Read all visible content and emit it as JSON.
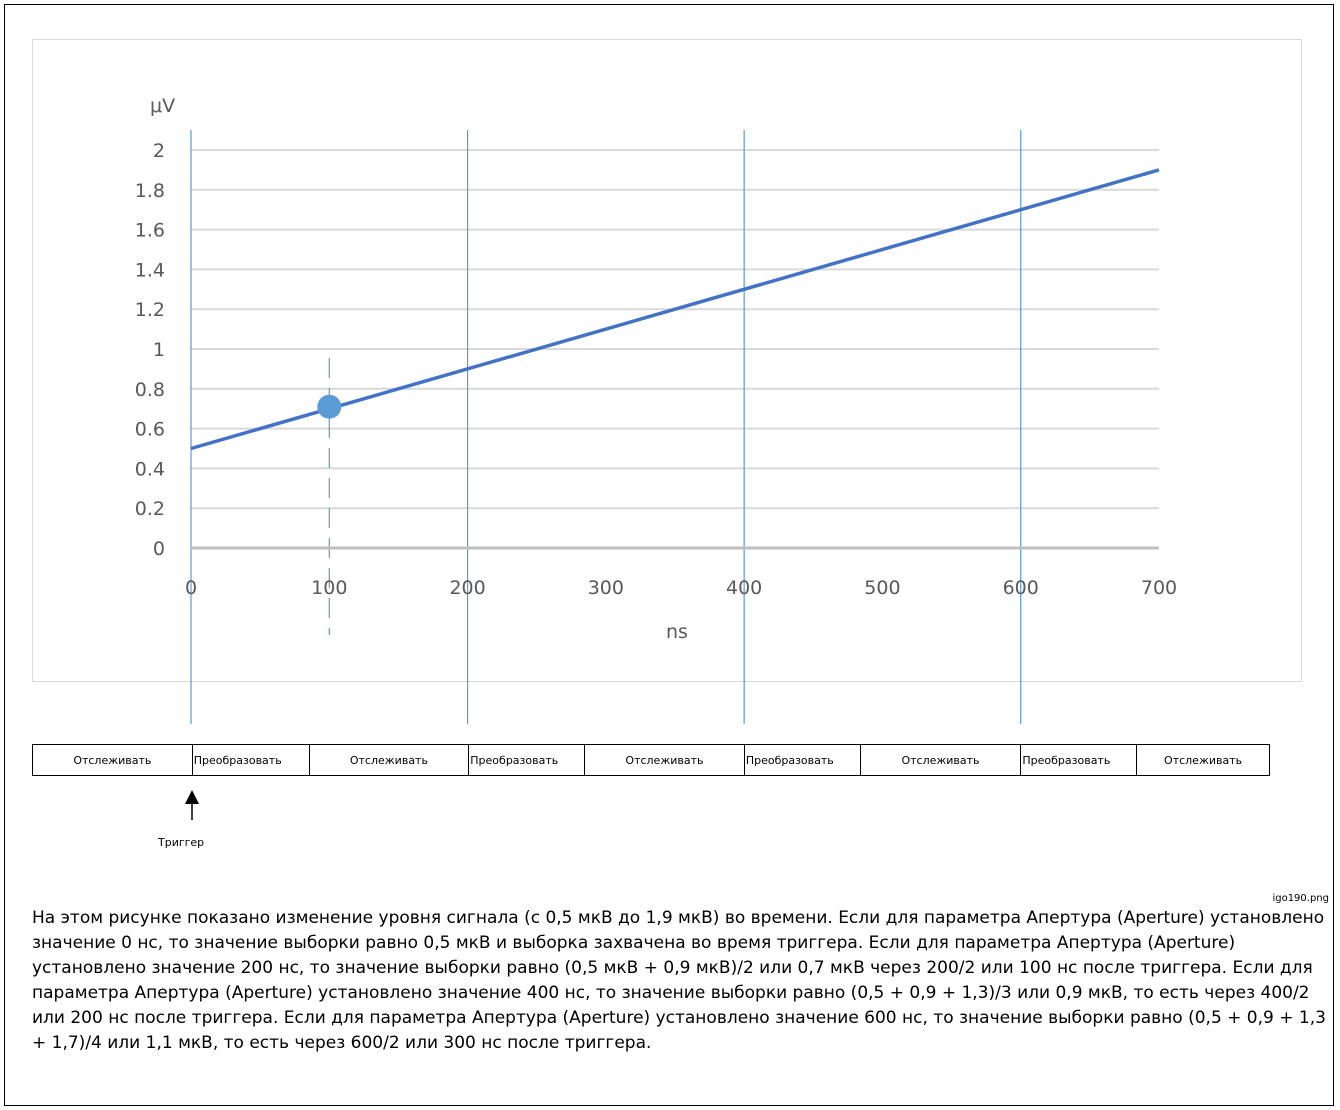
{
  "chart_data": {
    "type": "line",
    "xlabel": "ns",
    "ylabel": "μV",
    "xlim": [
      0,
      700
    ],
    "ylim": [
      0,
      2
    ],
    "x_ticks": [
      "0",
      "100",
      "200",
      "300",
      "400",
      "500",
      "600",
      "700"
    ],
    "y_ticks": [
      "0",
      "0.2",
      "0.4",
      "0.6",
      "0.8",
      "1",
      "1.2",
      "1.4",
      "1.6",
      "1.8",
      "2"
    ],
    "grid": true,
    "series": [
      {
        "x": [
          0,
          700
        ],
        "y": [
          0.5,
          1.9
        ]
      }
    ],
    "marker": {
      "x": 100,
      "y": 0.71
    },
    "dashed_line_x": 100,
    "vertical_lines_x": [
      0,
      200,
      400,
      600
    ],
    "colors": {
      "line": "#4472c4",
      "marker": "#5b9bd5",
      "vlines": "#5b9bd5",
      "grid": "#d9d9d9",
      "axis": "#bfbfbf"
    }
  },
  "phases": [
    {
      "label": "Отслеживать",
      "kind": "track"
    },
    {
      "label": "Преобразовать",
      "kind": "conv"
    },
    {
      "label": "Отслеживать",
      "kind": "track"
    },
    {
      "label": "Преобразовать",
      "kind": "conv"
    },
    {
      "label": "Отслеживать",
      "kind": "track"
    },
    {
      "label": "Преобразовать",
      "kind": "conv"
    },
    {
      "label": "Отслеживать",
      "kind": "track"
    },
    {
      "label": "Преобразовать",
      "kind": "conv"
    },
    {
      "label": "Отслеживать",
      "kind": "track"
    }
  ],
  "trigger_label": "Триггер",
  "filename": "igo190.png",
  "caption": "На этом рисунке показано изменение уровня сигнала (с 0,5 мкВ до 1,9 мкВ) во времени. Если для параметра Апертура (Aperture) установлено значение 0 нс, то значение выборки равно 0,5 мкВ и выборка захвачена во время триггера. Если для параметра Апертура (Aperture) установлено значение 200 нс, то значение выборки равно (0,5 мкВ + 0,9 мкВ)/2 или 0,7 мкВ через 200/2 или 100 нс после триггера. Если для параметра Апертура (Aperture) установлено значение 400 нс, то значение выборки равно (0,5 + 0,9 + 1,3)/3 или 0,9 мкВ, то есть через 400/2 или 200 нс после триггера. Если для параметра Апертура (Aperture) установлено значение 600 нс, то значение выборки равно (0,5 + 0,9 + 1,3 + 1,7)/4 или 1,1 мкВ, то есть через 600/2 или 300 нс после триггера."
}
